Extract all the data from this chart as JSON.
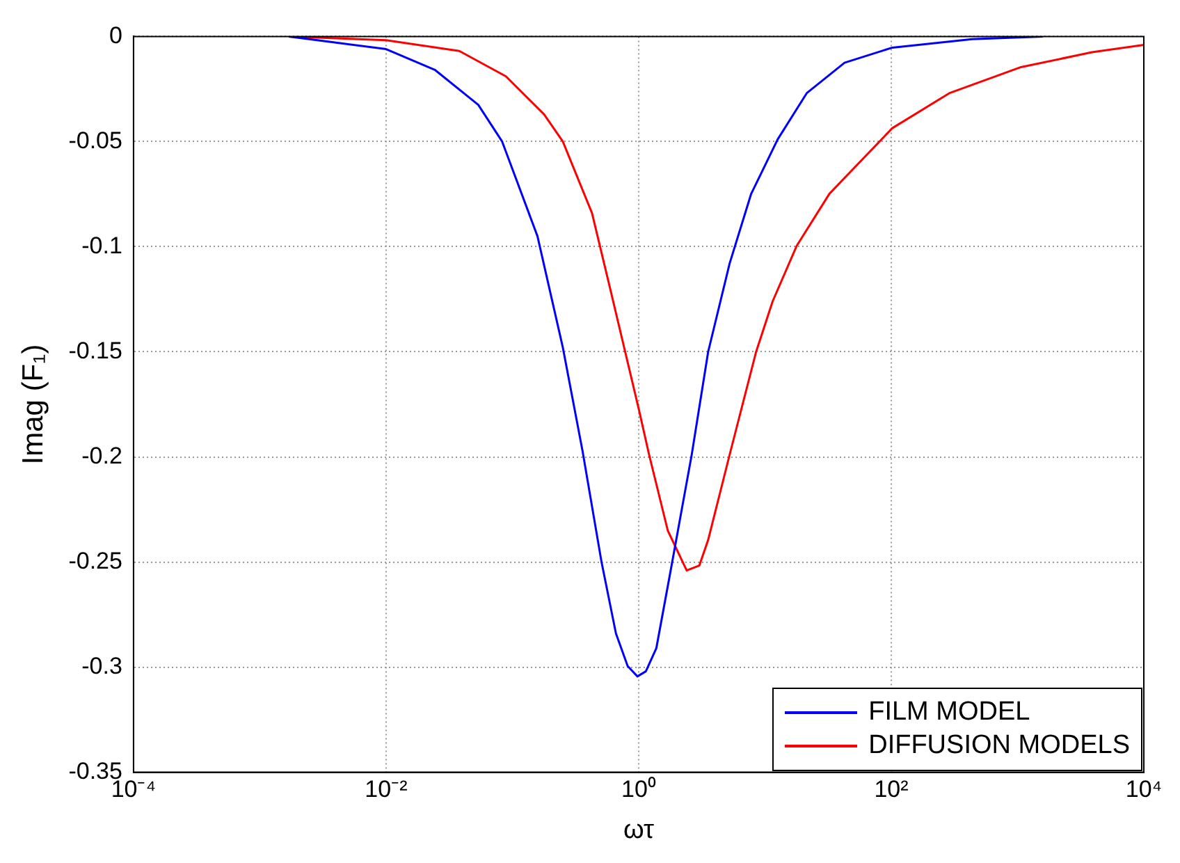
{
  "chart_data": {
    "type": "line",
    "xlabel": "ωτ",
    "ylabel": "Imag (F₁)",
    "log": "x",
    "grid": true,
    "legend": "bottom right",
    "marker": "none",
    "line_style": "solid",
    "xlim": [
      0.0001,
      10000
    ],
    "xticks": [
      {
        "value": 0.0001,
        "label": "10⁻⁴"
      },
      {
        "value": 0.01,
        "label": "10⁻²"
      },
      {
        "value": 1,
        "label": "10⁰"
      },
      {
        "value": 100,
        "label": "10²"
      },
      {
        "value": 10000,
        "label": "10⁴"
      }
    ],
    "ylim": [
      -0.35,
      0
    ],
    "yticks": [
      0,
      -0.05,
      -0.1,
      -0.15,
      -0.2,
      -0.25,
      -0.3,
      -0.35
    ],
    "series": [
      {
        "name": "FILM MODEL",
        "color": "#0000ff",
        "x": [
          0.0017,
          0.01,
          0.0245,
          0.0537,
          0.083,
          0.158,
          0.251,
          0.359,
          0.508,
          0.661,
          0.818,
          0.977,
          1.14,
          1.38,
          1.78,
          2.63,
          3.55,
          5.25,
          7.76,
          12.6,
          21.4,
          42.7,
          102,
          437,
          1585
        ],
        "values": [
          0,
          -0.006,
          -0.016,
          -0.0325,
          -0.05,
          -0.095,
          -0.148,
          -0.197,
          -0.25,
          -0.284,
          -0.2995,
          -0.3044,
          -0.302,
          -0.291,
          -0.255,
          -0.199,
          -0.15,
          -0.108,
          -0.075,
          -0.049,
          -0.027,
          -0.0125,
          -0.0053,
          -0.0013,
          0
        ]
      },
      {
        "name": "DIFFUSION MODELS",
        "color": "#ff0000",
        "x": [
          0.0017,
          0.01,
          0.038,
          0.089,
          0.178,
          0.251,
          0.427,
          0.603,
          1,
          1.21,
          1.7,
          2.4,
          3.02,
          3.55,
          5.25,
          8.51,
          11.5,
          17.8,
          32.4,
          102,
          288,
          1047,
          3890,
          10000
        ],
        "values": [
          0,
          -0.0018,
          -0.0069,
          -0.019,
          -0.037,
          -0.05,
          -0.084,
          -0.1215,
          -0.177,
          -0.199,
          -0.235,
          -0.254,
          -0.2517,
          -0.2395,
          -0.199,
          -0.15,
          -0.126,
          -0.0997,
          -0.0748,
          -0.0436,
          -0.027,
          -0.0147,
          -0.0075,
          -0.004
        ]
      }
    ]
  }
}
